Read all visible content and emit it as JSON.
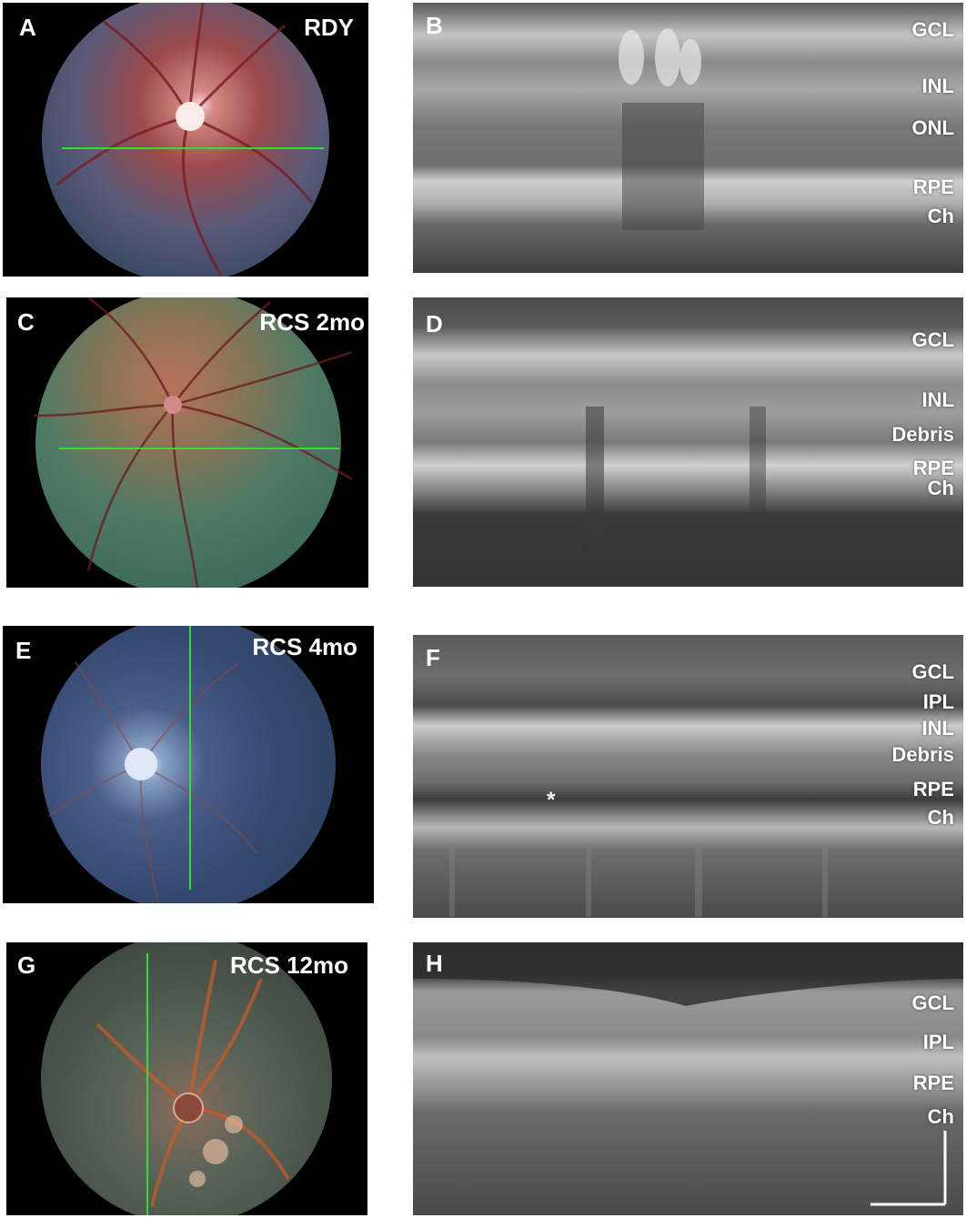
{
  "rows": [
    {
      "fundus": {
        "letter": "A",
        "title": "RDY"
      },
      "oct": {
        "letter": "B",
        "layers": [
          "GCL",
          "INL",
          "ONL",
          "RPE",
          "Ch"
        ]
      }
    },
    {
      "fundus": {
        "letter": "C",
        "title": "RCS 2mo"
      },
      "oct": {
        "letter": "D",
        "layers": [
          "GCL",
          "INL",
          "Debris",
          "RPE",
          "Ch"
        ]
      }
    },
    {
      "fundus": {
        "letter": "E",
        "title": "RCS 4mo"
      },
      "oct": {
        "letter": "F",
        "layers": [
          "GCL",
          "IPL",
          "INL",
          "Debris",
          "RPE",
          "Ch"
        ],
        "marker": "*"
      }
    },
    {
      "fundus": {
        "letter": "G",
        "title": "RCS 12mo"
      },
      "oct": {
        "letter": "H",
        "layers": [
          "GCL",
          "IPL",
          "RPE",
          "Ch"
        ]
      }
    }
  ],
  "colors": {
    "scan_line": "#33dd33",
    "label_text": "#ffffff",
    "oct_background": "#4a4a4a",
    "fundus_background": "#000000"
  }
}
